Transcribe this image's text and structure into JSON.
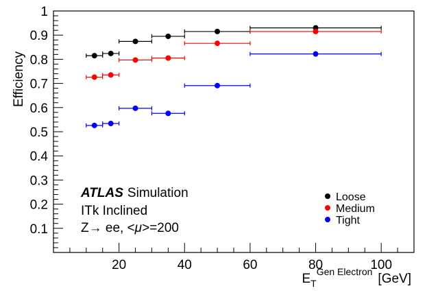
{
  "chart_data": {
    "type": "scatter",
    "xlabel_main": "E",
    "xlabel_sub": "T",
    "xlabel_sup": "Gen Electron",
    "xlabel_unit": "[GeV]",
    "ylabel": "Efficiency",
    "xlim": [
      0,
      110
    ],
    "ylim": [
      0,
      1
    ],
    "x_ticks": [
      20,
      40,
      60,
      80,
      100
    ],
    "y_ticks": [
      0.1,
      0.2,
      0.3,
      0.4,
      0.5,
      0.6,
      0.7,
      0.8,
      0.9,
      1
    ],
    "y_tick_labels": [
      "0.1",
      "0.2",
      "0.3",
      "0.4",
      "0.5",
      "0.6",
      "0.7",
      "0.8",
      "0.9",
      "1"
    ],
    "grid": false,
    "legend_position": "bottom-right",
    "bins": [
      [
        10,
        15
      ],
      [
        15,
        20
      ],
      [
        20,
        30
      ],
      [
        30,
        40
      ],
      [
        40,
        60
      ],
      [
        60,
        100
      ]
    ],
    "series": [
      {
        "name": "Loose",
        "color": "#000000",
        "values": [
          0.815,
          0.824,
          0.874,
          0.895,
          0.915,
          0.93
        ]
      },
      {
        "name": "Medium",
        "color": "#ff0000",
        "values": [
          0.726,
          0.735,
          0.797,
          0.805,
          0.866,
          0.915
        ]
      },
      {
        "name": "Tight",
        "color": "#0000ff",
        "values": [
          0.526,
          0.534,
          0.597,
          0.576,
          0.691,
          0.822
        ]
      }
    ],
    "annotations": {
      "experiment": "ATLAS",
      "label": "Simulation",
      "line2": "ITk Inclined",
      "line3_pre": "Z→ ee, <",
      "line3_mu": "μ",
      "line3_post": ">=200"
    }
  }
}
